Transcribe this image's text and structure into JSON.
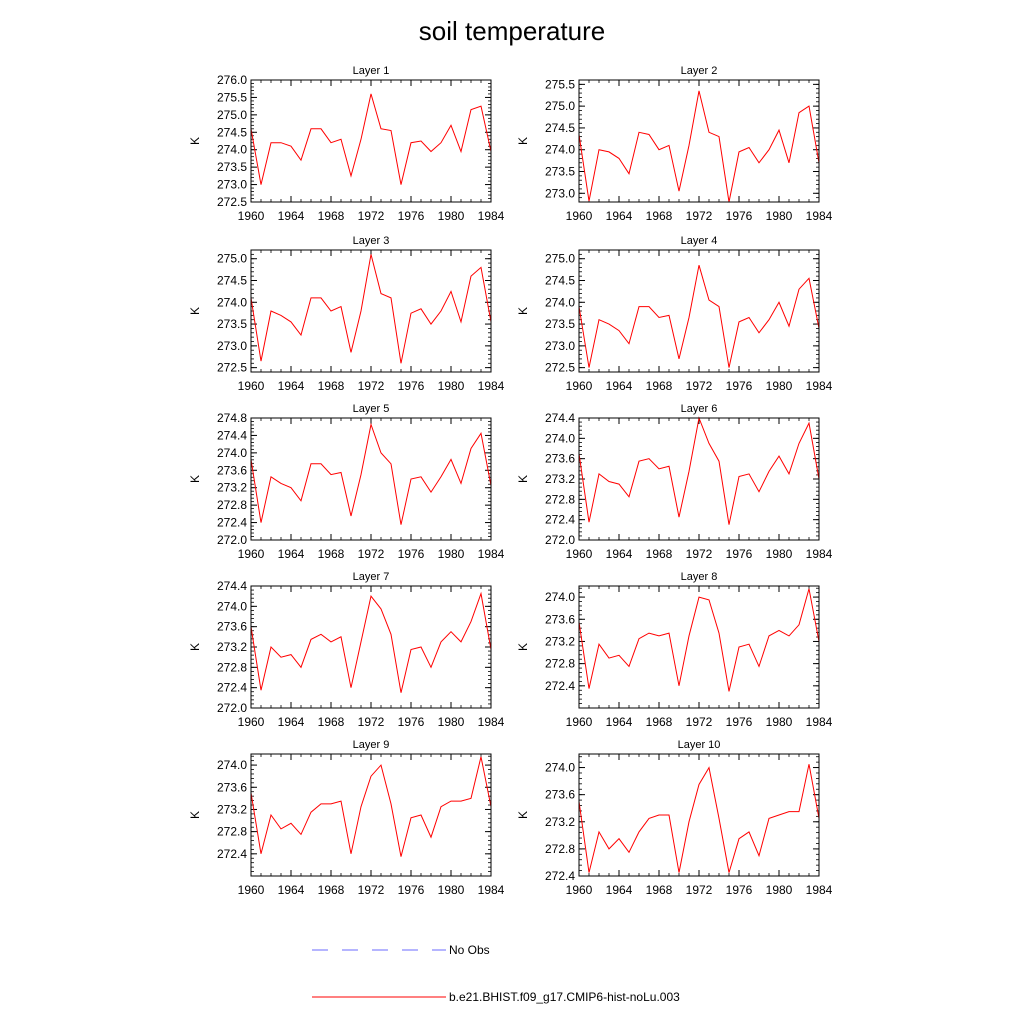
{
  "title": "soil temperature",
  "chart_data": [
    {
      "type": "line",
      "title": "Layer 1",
      "ylabel": "K",
      "xlim": [
        1960,
        1984
      ],
      "xticks": [
        1960,
        1964,
        1968,
        1972,
        1976,
        1980,
        1984
      ],
      "ylim": [
        272.5,
        276.0
      ],
      "yticks": [
        272.5,
        273.0,
        273.5,
        274.0,
        274.5,
        275.0,
        275.5,
        276.0
      ],
      "x": [
        1960,
        1961,
        1962,
        1963,
        1964,
        1965,
        1966,
        1967,
        1968,
        1969,
        1970,
        1971,
        1972,
        1973,
        1974,
        1975,
        1976,
        1977,
        1978,
        1979,
        1980,
        1981,
        1982,
        1983,
        1984
      ],
      "series": [
        {
          "name": "b.e21.BHIST.f09_g17.CMIP6-hist-noLu.003",
          "values": [
            274.6,
            273.0,
            274.2,
            274.2,
            274.1,
            273.7,
            274.6,
            274.6,
            274.2,
            274.3,
            273.25,
            274.3,
            275.6,
            274.6,
            274.55,
            273.0,
            274.2,
            274.25,
            273.95,
            274.2,
            274.7,
            273.95,
            275.15,
            275.25,
            273.95
          ]
        }
      ]
    },
    {
      "type": "line",
      "title": "Layer 2",
      "ylabel": "K",
      "xlim": [
        1960,
        1984
      ],
      "xticks": [
        1960,
        1964,
        1968,
        1972,
        1976,
        1980,
        1984
      ],
      "ylim": [
        272.8,
        275.6
      ],
      "yticks": [
        273.0,
        273.5,
        274.0,
        274.5,
        275.0,
        275.5
      ],
      "x": [
        1960,
        1961,
        1962,
        1963,
        1964,
        1965,
        1966,
        1967,
        1968,
        1969,
        1970,
        1971,
        1972,
        1973,
        1974,
        1975,
        1976,
        1977,
        1978,
        1979,
        1980,
        1981,
        1982,
        1983,
        1984
      ],
      "series": [
        {
          "name": "b.e21.BHIST.f09_g17.CMIP6-hist-noLu.003",
          "values": [
            274.35,
            272.82,
            274.0,
            273.95,
            273.8,
            273.45,
            274.4,
            274.35,
            274.0,
            274.1,
            273.05,
            274.1,
            275.35,
            274.4,
            274.3,
            272.8,
            273.95,
            274.05,
            273.7,
            274.0,
            274.45,
            273.7,
            274.85,
            275.0,
            273.7
          ]
        }
      ]
    },
    {
      "type": "line",
      "title": "Layer 3",
      "ylabel": "K",
      "xlim": [
        1960,
        1984
      ],
      "xticks": [
        1960,
        1964,
        1968,
        1972,
        1976,
        1980,
        1984
      ],
      "ylim": [
        272.4,
        275.2
      ],
      "yticks": [
        272.5,
        273.0,
        273.5,
        274.0,
        274.5,
        275.0
      ],
      "x": [
        1960,
        1961,
        1962,
        1963,
        1964,
        1965,
        1966,
        1967,
        1968,
        1969,
        1970,
        1971,
        1972,
        1973,
        1974,
        1975,
        1976,
        1977,
        1978,
        1979,
        1980,
        1981,
        1982,
        1983,
        1984
      ],
      "series": [
        {
          "name": "b.e21.BHIST.f09_g17.CMIP6-hist-noLu.003",
          "values": [
            274.1,
            272.65,
            273.8,
            273.7,
            273.55,
            273.25,
            274.1,
            274.1,
            273.8,
            273.9,
            272.85,
            273.8,
            275.1,
            274.2,
            274.1,
            272.6,
            273.75,
            273.85,
            273.5,
            273.8,
            274.25,
            273.55,
            274.6,
            274.8,
            273.55
          ]
        }
      ]
    },
    {
      "type": "line",
      "title": "Layer 4",
      "ylabel": "K",
      "xlim": [
        1960,
        1984
      ],
      "xticks": [
        1960,
        1964,
        1968,
        1972,
        1976,
        1980,
        1984
      ],
      "ylim": [
        272.4,
        275.2
      ],
      "yticks": [
        272.5,
        273.0,
        273.5,
        274.0,
        274.5,
        275.0
      ],
      "x": [
        1960,
        1961,
        1962,
        1963,
        1964,
        1965,
        1966,
        1967,
        1968,
        1969,
        1970,
        1971,
        1972,
        1973,
        1974,
        1975,
        1976,
        1977,
        1978,
        1979,
        1980,
        1981,
        1982,
        1983,
        1984
      ],
      "series": [
        {
          "name": "b.e21.BHIST.f09_g17.CMIP6-hist-noLu.003",
          "values": [
            273.9,
            272.5,
            273.6,
            273.5,
            273.35,
            273.05,
            273.9,
            273.9,
            273.65,
            273.7,
            272.7,
            273.65,
            274.85,
            274.05,
            273.9,
            272.5,
            273.55,
            273.65,
            273.3,
            273.6,
            274.0,
            273.45,
            274.3,
            274.55,
            273.4
          ]
        }
      ]
    },
    {
      "type": "line",
      "title": "Layer 5",
      "ylabel": "K",
      "xlim": [
        1960,
        1984
      ],
      "xticks": [
        1960,
        1964,
        1968,
        1972,
        1976,
        1980,
        1984
      ],
      "ylim": [
        272.0,
        274.8
      ],
      "yticks": [
        272.0,
        272.4,
        272.8,
        273.2,
        273.6,
        274.0,
        274.4,
        274.8
      ],
      "x": [
        1960,
        1961,
        1962,
        1963,
        1964,
        1965,
        1966,
        1967,
        1968,
        1969,
        1970,
        1971,
        1972,
        1973,
        1974,
        1975,
        1976,
        1977,
        1978,
        1979,
        1980,
        1981,
        1982,
        1983,
        1984
      ],
      "series": [
        {
          "name": "b.e21.BHIST.f09_g17.CMIP6-hist-noLu.003",
          "values": [
            273.85,
            272.4,
            273.45,
            273.3,
            273.2,
            272.9,
            273.75,
            273.75,
            273.5,
            273.55,
            272.55,
            273.5,
            274.65,
            274.0,
            273.75,
            272.35,
            273.4,
            273.45,
            273.1,
            273.45,
            273.85,
            273.3,
            274.1,
            274.45,
            273.25
          ]
        }
      ]
    },
    {
      "type": "line",
      "title": "Layer 6",
      "ylabel": "K",
      "xlim": [
        1960,
        1984
      ],
      "xticks": [
        1960,
        1964,
        1968,
        1972,
        1976,
        1980,
        1984
      ],
      "ylim": [
        272.0,
        274.4
      ],
      "yticks": [
        272.0,
        272.4,
        272.8,
        273.2,
        273.6,
        274.0,
        274.4
      ],
      "x": [
        1960,
        1961,
        1962,
        1963,
        1964,
        1965,
        1966,
        1967,
        1968,
        1969,
        1970,
        1971,
        1972,
        1973,
        1974,
        1975,
        1976,
        1977,
        1978,
        1979,
        1980,
        1981,
        1982,
        1983,
        1984
      ],
      "series": [
        {
          "name": "b.e21.BHIST.f09_g17.CMIP6-hist-noLu.003",
          "values": [
            273.7,
            272.35,
            273.3,
            273.15,
            273.1,
            272.85,
            273.55,
            273.6,
            273.4,
            273.45,
            272.45,
            273.35,
            274.4,
            273.9,
            273.55,
            272.3,
            273.25,
            273.3,
            272.95,
            273.35,
            273.65,
            273.3,
            273.9,
            274.3,
            273.2
          ]
        }
      ]
    },
    {
      "type": "line",
      "title": "Layer 7",
      "ylabel": "K",
      "xlim": [
        1960,
        1984
      ],
      "xticks": [
        1960,
        1964,
        1968,
        1972,
        1976,
        1980,
        1984
      ],
      "ylim": [
        272.0,
        274.4
      ],
      "yticks": [
        272.0,
        272.4,
        272.8,
        273.2,
        273.6,
        274.0,
        274.4
      ],
      "x": [
        1960,
        1961,
        1962,
        1963,
        1964,
        1965,
        1966,
        1967,
        1968,
        1969,
        1970,
        1971,
        1972,
        1973,
        1974,
        1975,
        1976,
        1977,
        1978,
        1979,
        1980,
        1981,
        1982,
        1983,
        1984
      ],
      "series": [
        {
          "name": "b.e21.BHIST.f09_g17.CMIP6-hist-noLu.003",
          "values": [
            273.6,
            272.35,
            273.2,
            273.0,
            273.05,
            272.8,
            273.35,
            273.45,
            273.3,
            273.4,
            272.4,
            273.3,
            274.2,
            273.95,
            273.45,
            272.3,
            273.15,
            273.2,
            272.8,
            273.3,
            273.5,
            273.3,
            273.7,
            274.25,
            273.15
          ]
        }
      ]
    },
    {
      "type": "line",
      "title": "Layer 8",
      "ylabel": "K",
      "xlim": [
        1960,
        1984
      ],
      "xticks": [
        1960,
        1964,
        1968,
        1972,
        1976,
        1980,
        1984
      ],
      "ylim": [
        272.0,
        274.2
      ],
      "yticks": [
        272.4,
        272.8,
        273.2,
        273.6,
        274.0
      ],
      "x": [
        1960,
        1961,
        1962,
        1963,
        1964,
        1965,
        1966,
        1967,
        1968,
        1969,
        1970,
        1971,
        1972,
        1973,
        1974,
        1975,
        1976,
        1977,
        1978,
        1979,
        1980,
        1981,
        1982,
        1983,
        1984
      ],
      "series": [
        {
          "name": "b.e21.BHIST.f09_g17.CMIP6-hist-noLu.003",
          "values": [
            273.55,
            272.35,
            273.15,
            272.9,
            272.95,
            272.75,
            273.25,
            273.35,
            273.3,
            273.35,
            272.4,
            273.3,
            274.0,
            273.95,
            273.35,
            272.3,
            273.1,
            273.15,
            272.75,
            273.3,
            273.4,
            273.3,
            273.5,
            274.15,
            273.2
          ]
        }
      ]
    },
    {
      "type": "line",
      "title": "Layer 9",
      "ylabel": "K",
      "xlim": [
        1960,
        1984
      ],
      "xticks": [
        1960,
        1964,
        1968,
        1972,
        1976,
        1980,
        1984
      ],
      "ylim": [
        272.0,
        274.2
      ],
      "yticks": [
        272.4,
        272.8,
        273.2,
        273.6,
        274.0
      ],
      "x": [
        1960,
        1961,
        1962,
        1963,
        1964,
        1965,
        1966,
        1967,
        1968,
        1969,
        1970,
        1971,
        1972,
        1973,
        1974,
        1975,
        1976,
        1977,
        1978,
        1979,
        1980,
        1981,
        1982,
        1983,
        1984
      ],
      "series": [
        {
          "name": "b.e21.BHIST.f09_g17.CMIP6-hist-noLu.003",
          "values": [
            273.5,
            272.4,
            273.1,
            272.85,
            272.95,
            272.75,
            273.15,
            273.3,
            273.3,
            273.35,
            272.4,
            273.25,
            273.8,
            274.0,
            273.3,
            272.35,
            273.05,
            273.1,
            272.7,
            273.25,
            273.35,
            273.35,
            273.4,
            274.15,
            273.25
          ]
        }
      ]
    },
    {
      "type": "line",
      "title": "Layer 10",
      "ylabel": "K",
      "xlim": [
        1960,
        1984
      ],
      "xticks": [
        1960,
        1964,
        1968,
        1972,
        1976,
        1980,
        1984
      ],
      "ylim": [
        272.4,
        274.2
      ],
      "yticks": [
        272.4,
        272.8,
        273.2,
        273.6,
        274.0
      ],
      "x": [
        1960,
        1961,
        1962,
        1963,
        1964,
        1965,
        1966,
        1967,
        1968,
        1969,
        1970,
        1971,
        1972,
        1973,
        1974,
        1975,
        1976,
        1977,
        1978,
        1979,
        1980,
        1981,
        1982,
        1983,
        1984
      ],
      "series": [
        {
          "name": "b.e21.BHIST.f09_g17.CMIP6-hist-noLu.003",
          "values": [
            273.5,
            272.45,
            273.05,
            272.8,
            272.95,
            272.75,
            273.05,
            273.25,
            273.3,
            273.3,
            272.45,
            273.2,
            273.75,
            274.0,
            273.25,
            272.45,
            272.95,
            273.05,
            272.7,
            273.25,
            273.3,
            273.35,
            273.35,
            274.05,
            273.25
          ]
        }
      ]
    }
  ],
  "legend": {
    "placement": "bottom-center",
    "entries": [
      {
        "label": "No Obs",
        "color": "#6b6bff",
        "style": "dashed"
      },
      {
        "label": "b.e21.BHIST.f09_g17.CMIP6-hist-noLu.003",
        "color": "#ff0000",
        "style": "solid"
      }
    ]
  }
}
